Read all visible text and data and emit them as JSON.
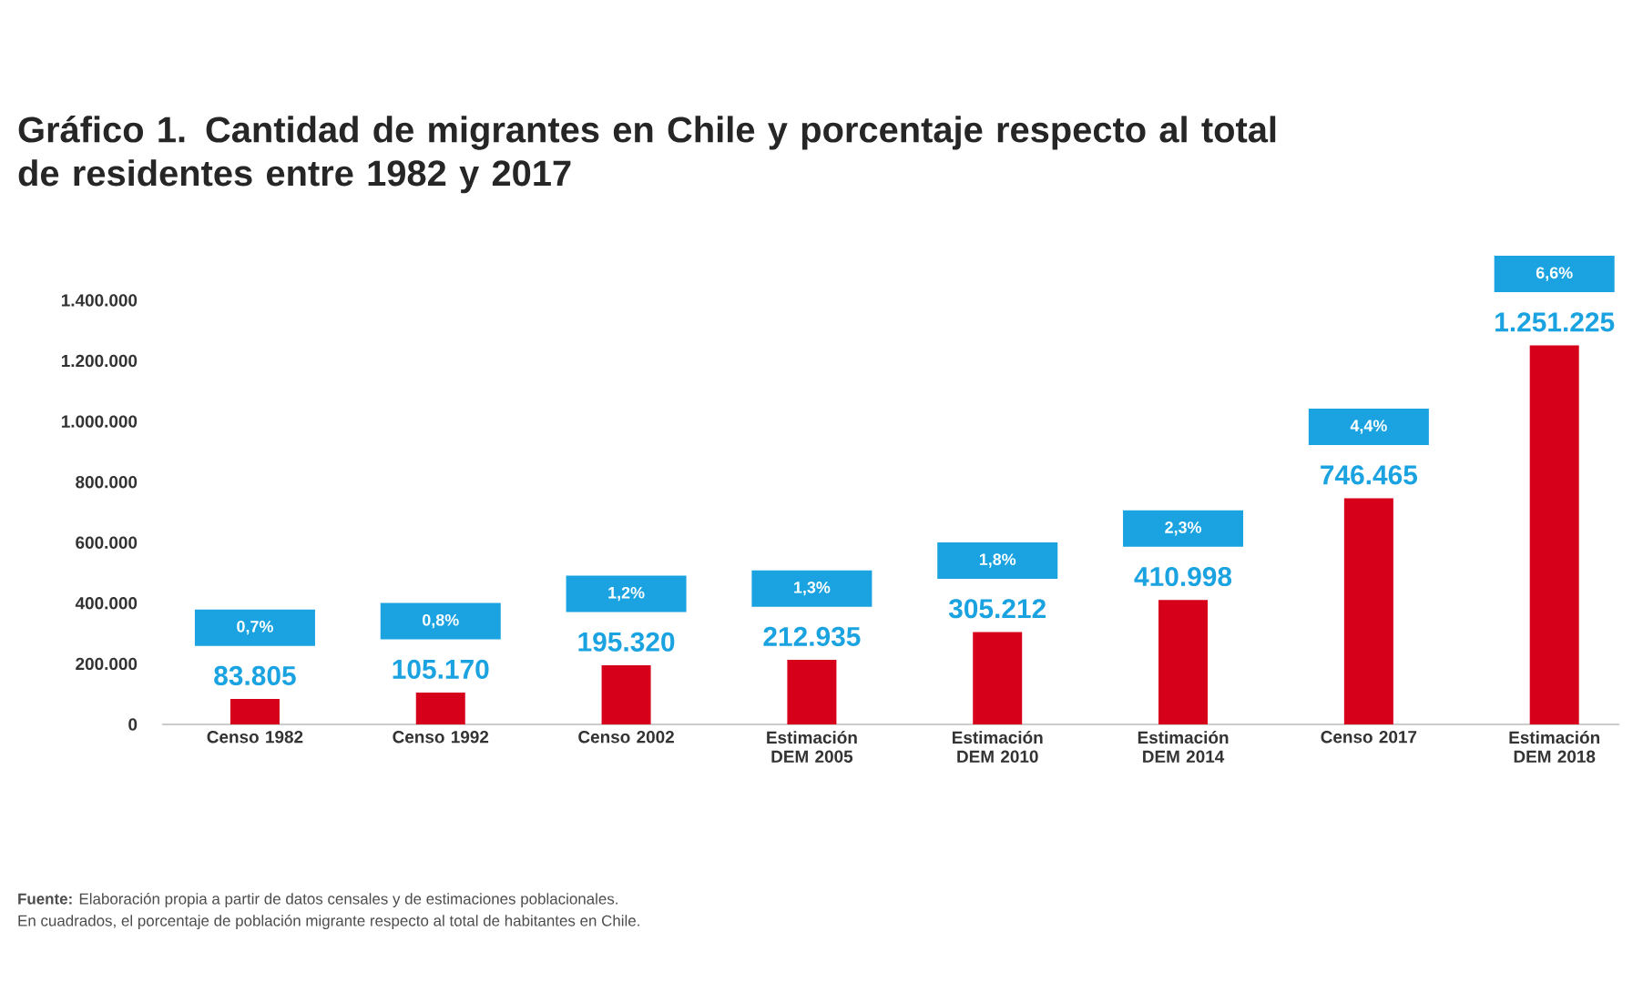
{
  "chart_data": {
    "type": "bar",
    "title": "Gráfico 1. Cantidad de migrantes en Chile y porcentaje respecto al total de residentes entre 1982 y 2017",
    "categories": [
      "Censo 1982",
      "Censo 1992",
      "Censo 2002",
      "Estimación DEM 2005",
      "Estimación DEM 2010",
      "Estimación DEM 2014",
      "Censo 2017",
      "Estimación DEM 2018"
    ],
    "values": [
      83805,
      105170,
      195320,
      212935,
      305212,
      410998,
      746465,
      1251225
    ],
    "value_labels": [
      "83.805",
      "105.170",
      "195.320",
      "212.935",
      "305.212",
      "410.998",
      "746.465",
      "1.251.225"
    ],
    "color": "#d7001a",
    "ylim": [
      0,
      1400000
    ],
    "yticks": [
      0,
      {
        "value": 200000,
        "label": "200.000"
      },
      {
        "value": 400000,
        "label": "400.000"
      },
      {
        "value": 600000,
        "label": "600.000"
      },
      {
        "value": 800000,
        "label": "800.000"
      },
      {
        "value": 1000000,
        "label": "1.000.000"
      },
      {
        "value": 1200000,
        "label": "1.200.000"
      },
      {
        "value": 1400000,
        "label": "1.400.000"
      }
    ],
    "grid": false,
    "annotations": [
      "0,7%",
      "0,8%",
      "1,2%",
      "1,3%",
      "1,8%",
      "2,3%",
      "4,4%",
      "6,6%",
      "**Fuente:** Elaboración propia a partir de datos censales y de estimaciones poblacionales.",
      "En cuadrados, el porcentaje de población migrante respecto al total de habitantes en Chile."
    ]
  }
}
